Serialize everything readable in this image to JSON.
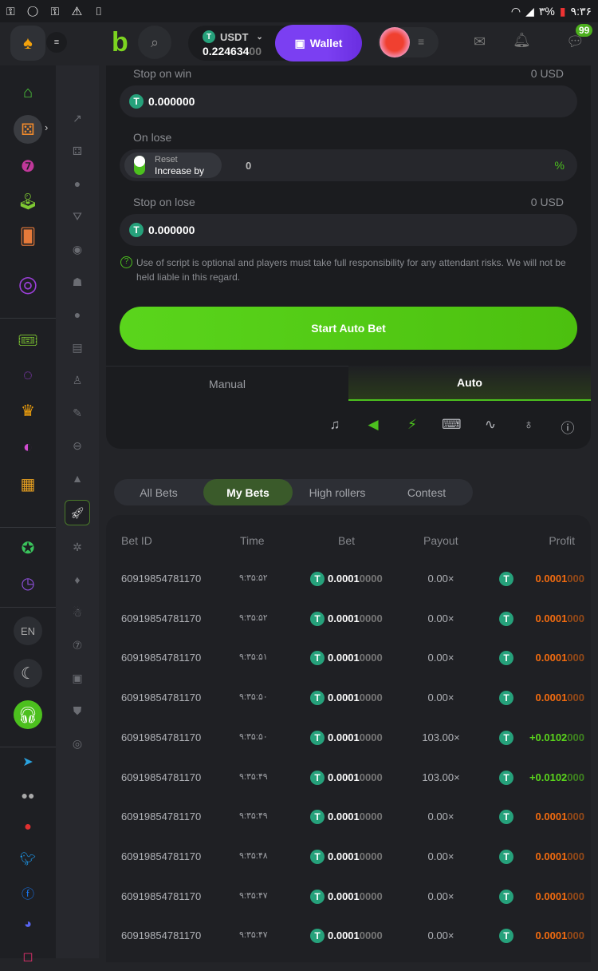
{
  "status_bar": {
    "battery": "۳%",
    "time": "۹:۳۶"
  },
  "header": {
    "currency": "USDT",
    "balance_main": "0.224634",
    "balance_dim": "00",
    "wallet": "Wallet",
    "chat_badge": "99"
  },
  "panel": {
    "stop_on_win": {
      "label": "Stop on win",
      "usd": "0 USD",
      "value": "0.000000"
    },
    "on_lose": {
      "label": "On lose",
      "reset": "Reset",
      "increase": "Increase by",
      "value": "0",
      "unit": "%"
    },
    "stop_on_lose": {
      "label": "Stop on lose",
      "usd": "0 USD",
      "value": "0.000000"
    },
    "disclaimer": "Use of script is optional and players must take full responsibility for any attendant risks. We will not be held liable in this regard.",
    "start_button": "Start Auto Bet",
    "tabs": [
      "Manual",
      "Auto"
    ],
    "active_tab": "Auto"
  },
  "bet_tabs": [
    "All Bets",
    "My Bets",
    "High rollers",
    "Contest"
  ],
  "active_bet_tab": "My Bets",
  "table": {
    "headers": [
      "Bet ID",
      "Time",
      "Bet",
      "Payout",
      "Profit"
    ],
    "rows": [
      {
        "id": "60919854781170",
        "time": "۹:۳۵:۵۲",
        "bet": "0.0001",
        "bet_dim": "0000",
        "payout": "0.00×",
        "profit": "0.0001",
        "profit_dim": "000",
        "win": false
      },
      {
        "id": "60919854781170",
        "time": "۹:۳۵:۵۲",
        "bet": "0.0001",
        "bet_dim": "0000",
        "payout": "0.00×",
        "profit": "0.0001",
        "profit_dim": "000",
        "win": false
      },
      {
        "id": "60919854781170",
        "time": "۹:۳۵:۵۱",
        "bet": "0.0001",
        "bet_dim": "0000",
        "payout": "0.00×",
        "profit": "0.0001",
        "profit_dim": "000",
        "win": false
      },
      {
        "id": "60919854781170",
        "time": "۹:۳۵:۵۰",
        "bet": "0.0001",
        "bet_dim": "0000",
        "payout": "0.00×",
        "profit": "0.0001",
        "profit_dim": "000",
        "win": false
      },
      {
        "id": "60919854781170",
        "time": "۹:۳۵:۵۰",
        "bet": "0.0001",
        "bet_dim": "0000",
        "payout": "103.00×",
        "profit": "+0.0102",
        "profit_dim": "000",
        "win": true
      },
      {
        "id": "60919854781170",
        "time": "۹:۳۵:۴۹",
        "bet": "0.0001",
        "bet_dim": "0000",
        "payout": "103.00×",
        "profit": "+0.0102",
        "profit_dim": "000",
        "win": true
      },
      {
        "id": "60919854781170",
        "time": "۹:۳۵:۴۹",
        "bet": "0.0001",
        "bet_dim": "0000",
        "payout": "0.00×",
        "profit": "0.0001",
        "profit_dim": "000",
        "win": false
      },
      {
        "id": "60919854781170",
        "time": "۹:۳۵:۴۸",
        "bet": "0.0001",
        "bet_dim": "0000",
        "payout": "0.00×",
        "profit": "0.0001",
        "profit_dim": "000",
        "win": false
      },
      {
        "id": "60919854781170",
        "time": "۹:۳۵:۴۷",
        "bet": "0.0001",
        "bet_dim": "0000",
        "payout": "0.00×",
        "profit": "0.0001",
        "profit_dim": "000",
        "win": false
      },
      {
        "id": "60919854781170",
        "time": "۹:۳۵:۴۷",
        "bet": "0.0001",
        "bet_dim": "0000",
        "payout": "0.00×",
        "profit": "0.0001",
        "profit_dim": "000",
        "win": false
      }
    ]
  },
  "sidebar": {
    "language": "EN"
  },
  "colors": {
    "accent": "#5ad51c",
    "wallet": "#7b3ff2",
    "loss": "#f26b0f",
    "win": "#5ad51c",
    "tether": "#26a17b"
  }
}
